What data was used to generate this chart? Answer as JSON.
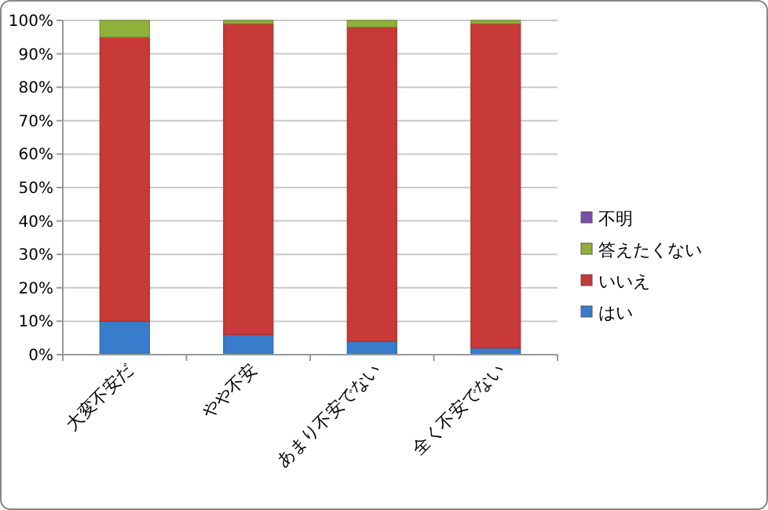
{
  "chart_data": {
    "type": "bar",
    "stacked": true,
    "categories": [
      "大変不安だ",
      "やや不安",
      "あまり不安でない",
      "全く不安でない"
    ],
    "series": [
      {
        "name": "はい",
        "color": "#3a7ccc",
        "values": [
          10,
          6,
          4,
          2
        ]
      },
      {
        "name": "いいえ",
        "color": "#c83a38",
        "values": [
          85,
          93,
          94,
          97
        ]
      },
      {
        "name": "答えたくない",
        "color": "#8fb13a",
        "values": [
          5,
          1,
          2,
          1
        ]
      },
      {
        "name": "不明",
        "color": "#7a4fa8",
        "values": [
          0,
          0,
          0,
          0
        ]
      }
    ],
    "ylim": [
      0,
      100
    ],
    "yticks": [
      {
        "value": 0,
        "label": "0%"
      },
      {
        "value": 10,
        "label": "10%"
      },
      {
        "value": 20,
        "label": "20%"
      },
      {
        "value": 30,
        "label": "30%"
      },
      {
        "value": 40,
        "label": "40%"
      },
      {
        "value": 50,
        "label": "50%"
      },
      {
        "value": 60,
        "label": "60%"
      },
      {
        "value": 70,
        "label": "70%"
      },
      {
        "value": 80,
        "label": "80%"
      },
      {
        "value": 90,
        "label": "90%"
      },
      {
        "value": 100,
        "label": "100%"
      }
    ],
    "grid": "y",
    "legend": "right"
  }
}
